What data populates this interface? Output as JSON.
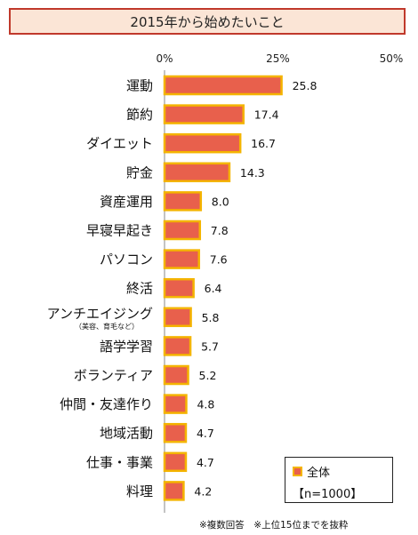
{
  "chart_data": {
    "type": "bar",
    "orientation": "horizontal",
    "title": "2015年から始めたいこと",
    "categories": [
      "運動",
      "節約",
      "ダイエット",
      "貯金",
      "資産運用",
      "早寝早起き",
      "パソコン",
      "終活",
      "アンチエイジング",
      "語学学習",
      "ボランティア",
      "仲間・友達作り",
      "地域活動",
      "仕事・事業",
      "料理"
    ],
    "category_notes": {
      "8": "（美容、育毛など）"
    },
    "series": [
      {
        "name": "全体",
        "values": [
          25.8,
          17.4,
          16.7,
          14.3,
          8.0,
          7.8,
          7.6,
          6.4,
          5.8,
          5.7,
          5.2,
          4.8,
          4.7,
          4.7,
          4.2
        ]
      }
    ],
    "value_labels": [
      "25.8",
      "17.4",
      "16.7",
      "14.3",
      "8.0",
      "7.8",
      "7.6",
      "6.4",
      "5.8",
      "5.7",
      "5.2",
      "4.8",
      "4.7",
      "4.7",
      "4.2"
    ],
    "xlim": [
      0,
      50
    ],
    "xticks": [
      "0%",
      "25%",
      "50%"
    ],
    "grid": false,
    "legend_position": "bottom-right",
    "colors": {
      "bar_fill": "#e8604c",
      "bar_border": "#f4b400",
      "title_border": "#c0392b",
      "title_bg": "#fbe5d6"
    }
  },
  "legend": {
    "series_label": "全体",
    "sample_label": "【n=1000】"
  },
  "footnote": "※複数回答　※上位15位までを抜粋"
}
